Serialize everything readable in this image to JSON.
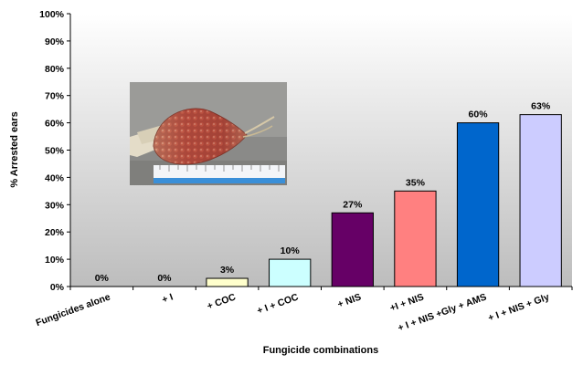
{
  "chart_data": {
    "type": "bar",
    "title": "",
    "xlabel": "Fungicide combinations",
    "ylabel": "% Arrested ears",
    "ylim": [
      0,
      100
    ],
    "yticks": [
      0,
      10,
      20,
      30,
      40,
      50,
      60,
      70,
      80,
      90,
      100
    ],
    "ytick_suffix": "%",
    "grid": false,
    "legend": "none",
    "categories": [
      "Fungicides alone",
      "+ I",
      "+ COC",
      "+ I + COC",
      "+ NIS",
      "+I + NIS",
      "+ I + NIS +Gly + AMS",
      "+ I + NIS + Gly"
    ],
    "values": [
      0,
      0,
      3,
      10,
      27,
      35,
      60,
      63
    ],
    "data_labels": [
      "0%",
      "0%",
      "3%",
      "10%",
      "27%",
      "35%",
      "60%",
      "63%"
    ],
    "bar_colors": [
      "#ffffff",
      "#ffffff",
      "#ffffcc",
      "#ccffff",
      "#660066",
      "#ff8080",
      "#0066cc",
      "#ccccff"
    ],
    "background": {
      "top": "#ffffff",
      "bottom": "#bdbdbd"
    }
  },
  "inset_photo": {
    "subject": "arrested corn ear on a ruler"
  }
}
